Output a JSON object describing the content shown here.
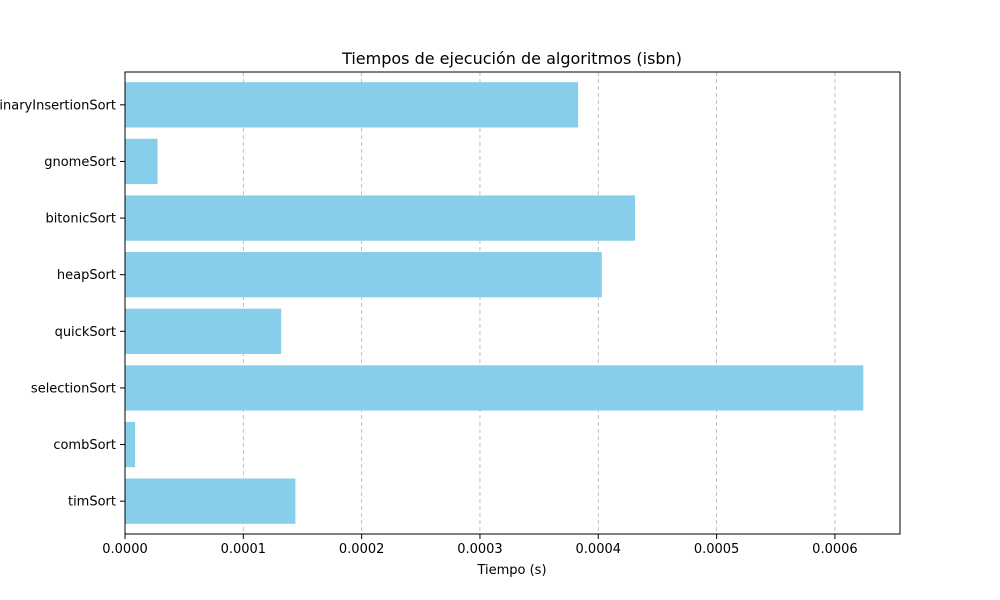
{
  "chart_data": {
    "type": "bar",
    "orientation": "horizontal",
    "title": "Tiempos de ejecución de algoritmos (isbn)",
    "xlabel": "Tiempo (s)",
    "ylabel": "",
    "categories": [
      "binaryInsertionSort",
      "gnomeSort",
      "bitonicSort",
      "heapSort",
      "quickSort",
      "selectionSort",
      "combSort",
      "timSort"
    ],
    "values": [
      0.000383,
      2.75e-05,
      0.000431,
      0.000403,
      0.000132,
      0.000624,
      8.5e-06,
      0.000144
    ],
    "xlim": [
      0,
      0.000655
    ],
    "xticks": [
      "0.0000",
      "0.0001",
      "0.0002",
      "0.0003",
      "0.0004",
      "0.0005",
      "0.0006"
    ],
    "grid": "x-dashed",
    "bar_color": "#87ceeb"
  }
}
